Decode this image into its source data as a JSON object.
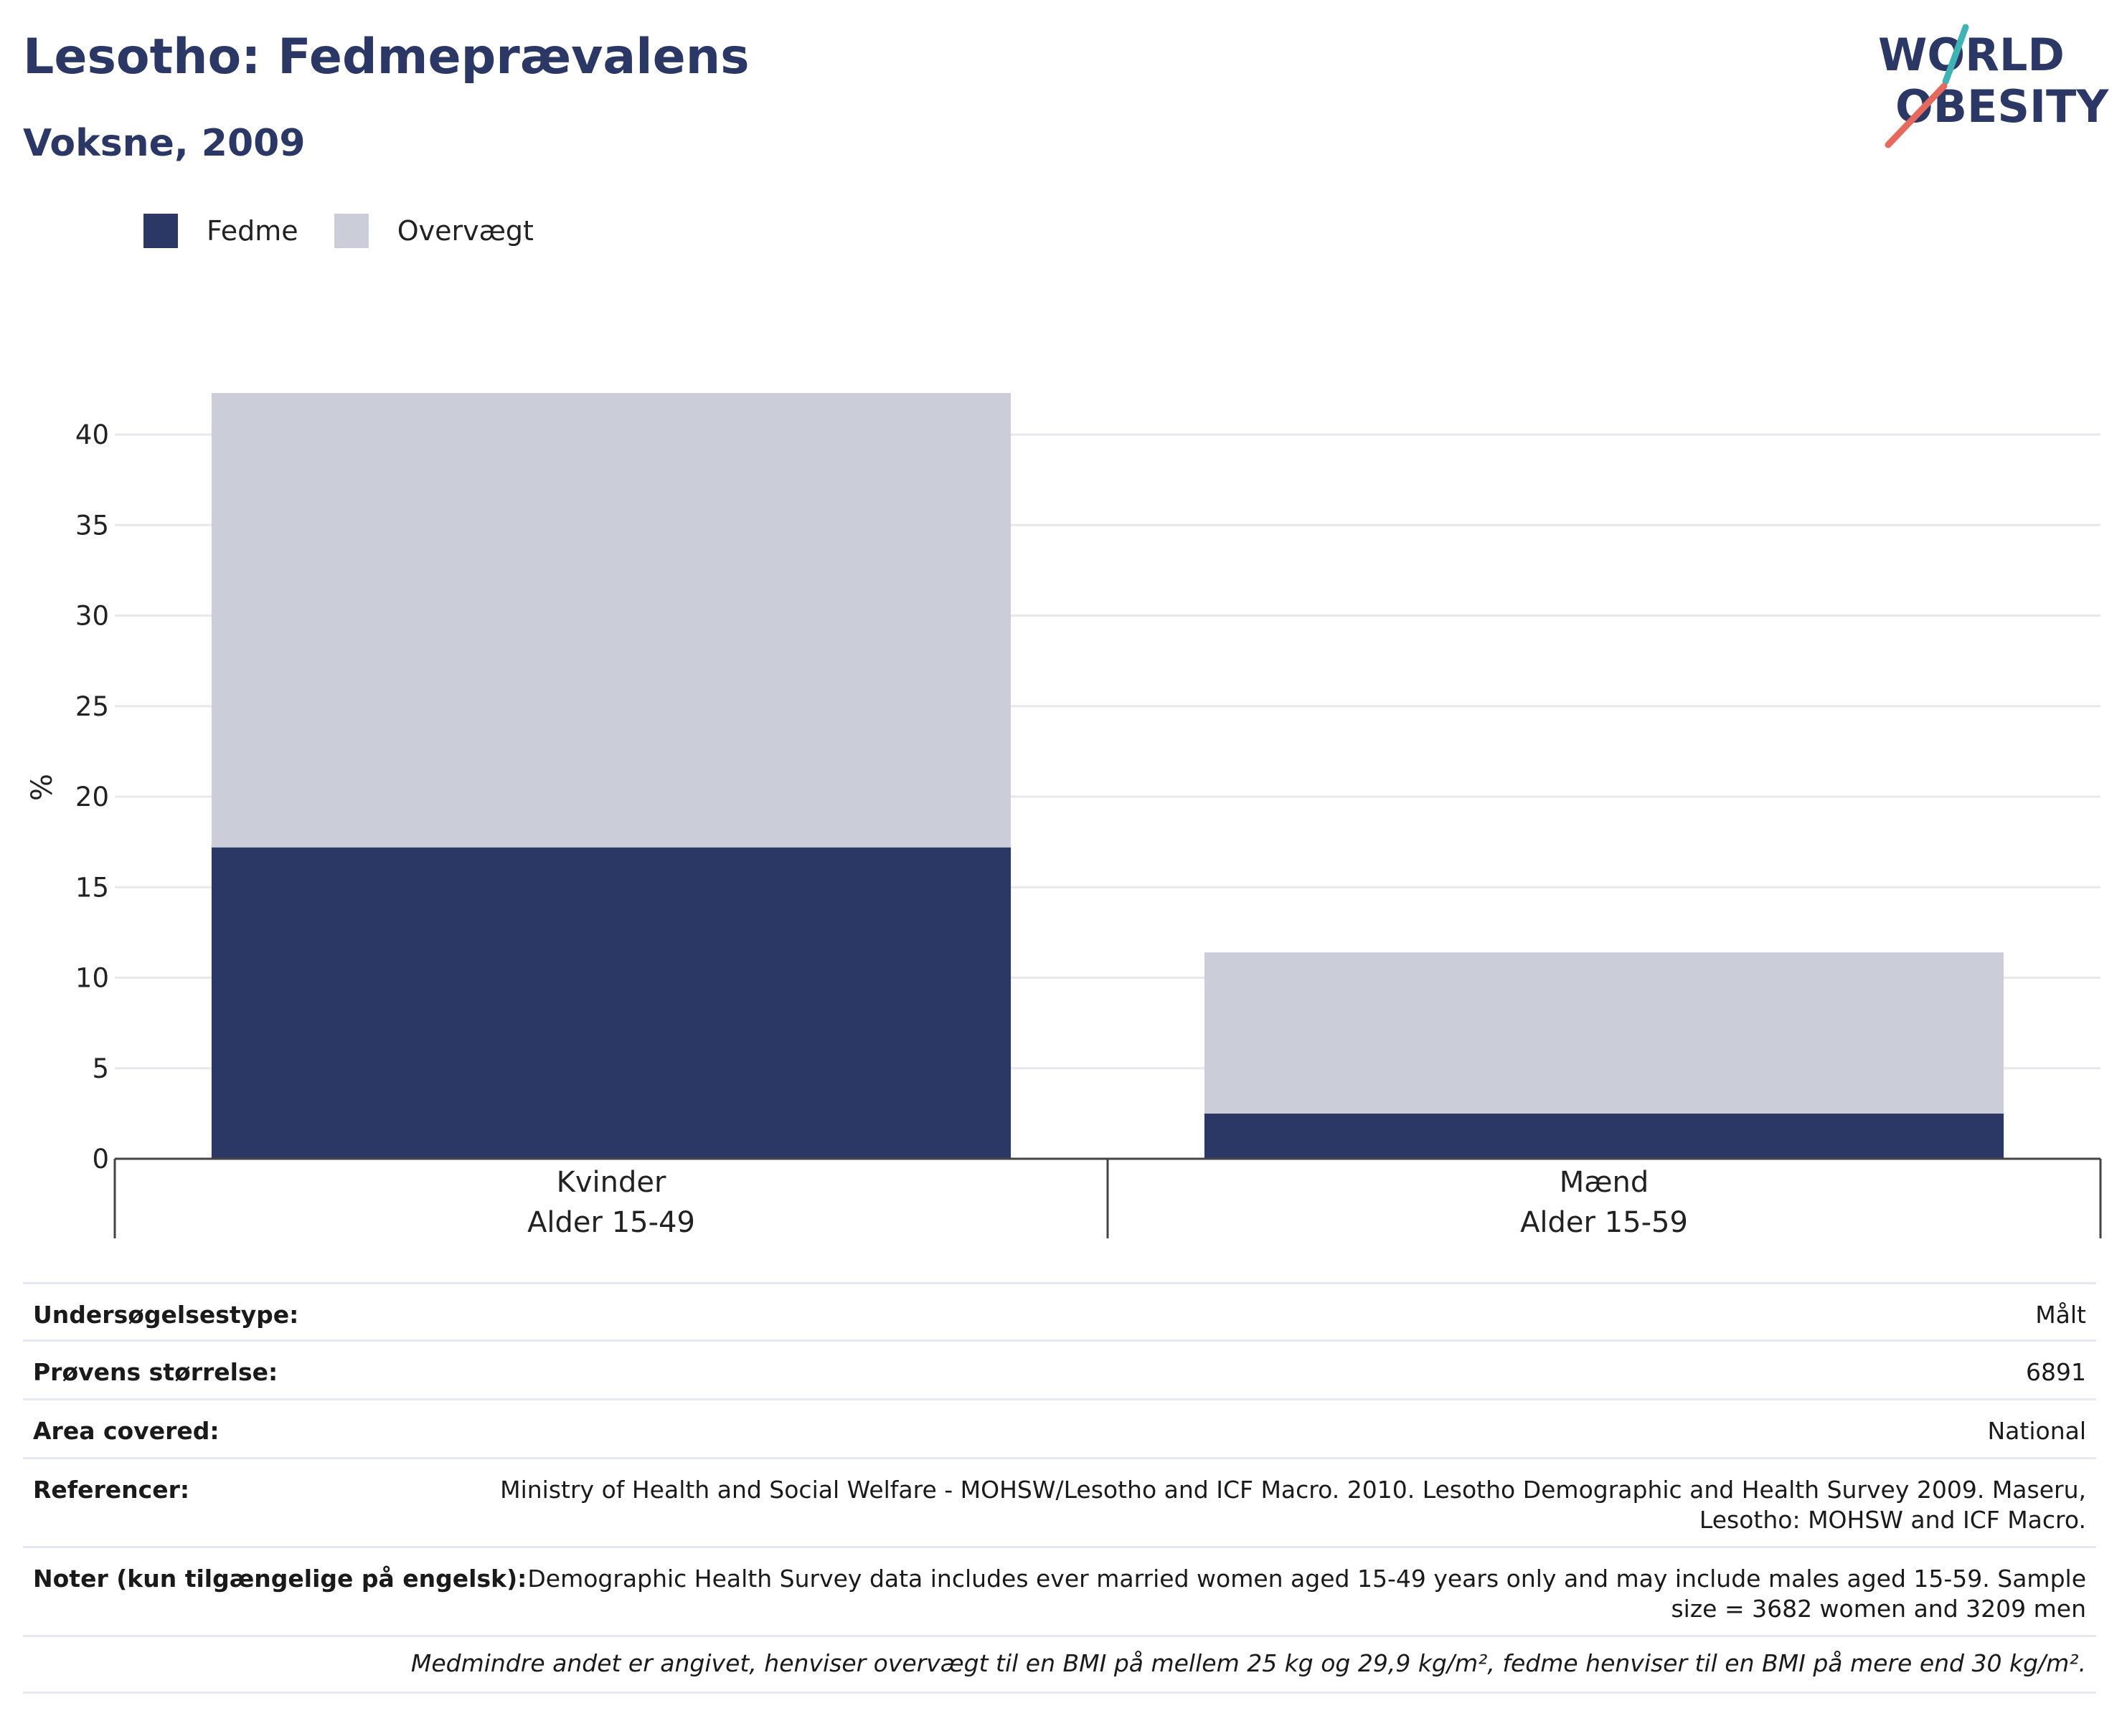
{
  "header": {
    "title": "Lesotho: Fedmeprævalens",
    "subtitle": "Voksne, 2009"
  },
  "logo": {
    "line1": "WORLD",
    "line2": "OBESITY",
    "icon": "world-obesity-logo"
  },
  "colors": {
    "obesity": "#2b3765",
    "overweight": "#cbcdd9",
    "title": "#2b3765",
    "accent_teal": "#3fb3b4",
    "accent_coral": "#e56a5d"
  },
  "chart_data": {
    "type": "bar",
    "stacked": true,
    "categories": [
      "Kvinder|Alder 15-49",
      "Mænd|Alder 15-59"
    ],
    "category_lines": [
      [
        "Kvinder",
        "Alder 15-49"
      ],
      [
        "Mænd",
        "Alder 15-59"
      ]
    ],
    "series": [
      {
        "name": "Fedme",
        "values": [
          17.2,
          2.5
        ]
      },
      {
        "name": "Overvægt",
        "values": [
          25.1,
          8.9
        ]
      }
    ],
    "ylabel": "%",
    "xlabel": "",
    "ylim": [
      0,
      42.3
    ],
    "yticks": [
      0,
      5,
      10,
      15,
      20,
      25,
      30,
      35,
      40
    ],
    "grid": true,
    "legend_position": "top-left"
  },
  "info": {
    "rows": [
      {
        "label": "Undersøgelsestype:",
        "value": "Målt"
      },
      {
        "label": "Prøvens størrelse:",
        "value": "6891"
      },
      {
        "label": "Area covered:",
        "value": "National"
      },
      {
        "label": "Referencer:",
        "value": "Ministry of Health and Social Welfare - MOHSW/Lesotho and ICF Macro. 2010. Lesotho Demographic and Health Survey 2009. Maseru, Lesotho: MOHSW and ICF Macro."
      },
      {
        "label": "Noter (kun tilgængelige på engelsk):",
        "value": "Demographic Health Survey data includes ever married women aged 15-49 years only and may include males aged 15-59. Sample size = 3682 women and 3209 men"
      }
    ],
    "footnote": "Medmindre andet er angivet, henviser overvægt til en BMI på mellem 25 kg og 29,9 kg/m², fedme henviser til en BMI på mere end 30 kg/m²."
  }
}
